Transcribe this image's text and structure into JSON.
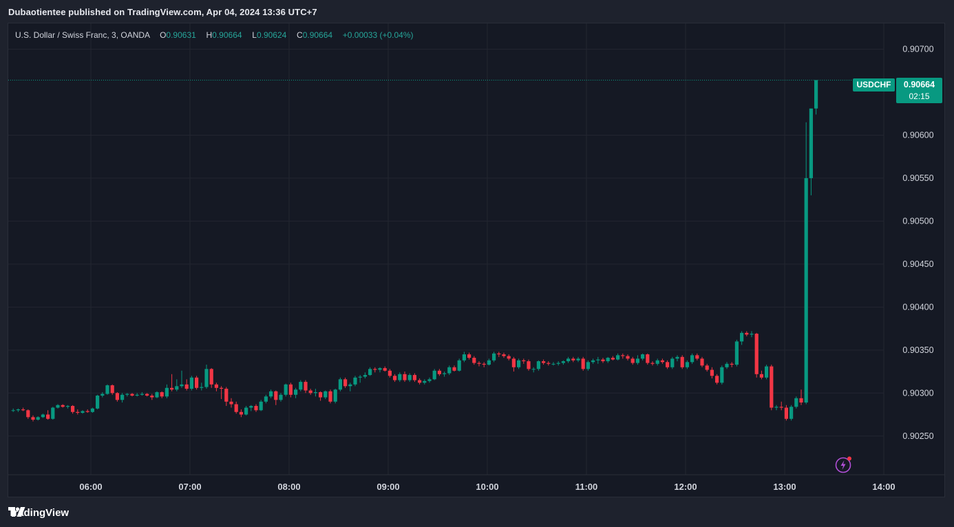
{
  "header": {
    "publisher": "Dubaotientee published on TradingView.com, Apr 04, 2024 13:36 UTC+7"
  },
  "legend": {
    "symbol_desc": "U.S. Dollar / Swiss Franc, 3, OANDA",
    "open_label": "O",
    "open": "0.90631",
    "high_label": "H",
    "high": "0.90664",
    "low_label": "L",
    "low": "0.90624",
    "close_label": "C",
    "close": "0.90664",
    "change": "+0.00033 (+0.04%)"
  },
  "last_price": {
    "symbol": "USDCHF",
    "price": "0.90664",
    "countdown": "02:15"
  },
  "footer": {
    "brand": "TradingView"
  },
  "colors": {
    "up": "#089981",
    "down": "#f23645",
    "grid": "#232631",
    "background": "#151924"
  },
  "chart_data": {
    "type": "candlestick",
    "y_ticks": [
      "0.90700",
      "0.90600",
      "0.90550",
      "0.90500",
      "0.90450",
      "0.90400",
      "0.90350",
      "0.90300",
      "0.90250"
    ],
    "x_ticks": [
      "06:00",
      "07:00",
      "08:00",
      "09:00",
      "10:00",
      "11:00",
      "12:00",
      "13:00",
      "14:00"
    ],
    "ylim": [
      0.90205,
      0.9073
    ],
    "x_start": "05:13",
    "interval_minutes": 3,
    "grid": true,
    "last_price_line": 0.90664,
    "ohlc": [
      [
        0.9028,
        0.90282,
        0.90278,
        0.9028
      ],
      [
        0.9028,
        0.90282,
        0.90278,
        0.90281
      ],
      [
        0.90281,
        0.90283,
        0.90279,
        0.9028
      ],
      [
        0.9028,
        0.90281,
        0.9027,
        0.90272
      ],
      [
        0.90272,
        0.90274,
        0.90267,
        0.90269
      ],
      [
        0.90269,
        0.90273,
        0.90268,
        0.90272
      ],
      [
        0.90272,
        0.90276,
        0.90271,
        0.90275
      ],
      [
        0.90275,
        0.9028,
        0.90269,
        0.9027
      ],
      [
        0.9027,
        0.90284,
        0.90269,
        0.90283
      ],
      [
        0.90283,
        0.90287,
        0.90282,
        0.90286
      ],
      [
        0.90286,
        0.90287,
        0.90283,
        0.90284
      ],
      [
        0.90284,
        0.90286,
        0.90282,
        0.90285
      ],
      [
        0.90285,
        0.90286,
        0.90276,
        0.90278
      ],
      [
        0.90278,
        0.90281,
        0.90275,
        0.90277
      ],
      [
        0.90277,
        0.9028,
        0.90276,
        0.90279
      ],
      [
        0.90279,
        0.90281,
        0.90277,
        0.90278
      ],
      [
        0.90278,
        0.90283,
        0.90277,
        0.90282
      ],
      [
        0.90282,
        0.90298,
        0.90281,
        0.90297
      ],
      [
        0.90297,
        0.90301,
        0.90295,
        0.90299
      ],
      [
        0.90299,
        0.9031,
        0.90298,
        0.90309
      ],
      [
        0.90309,
        0.9031,
        0.90298,
        0.903
      ],
      [
        0.903,
        0.90301,
        0.9029,
        0.90292
      ],
      [
        0.90292,
        0.903,
        0.90289,
        0.90298
      ],
      [
        0.90298,
        0.903,
        0.90296,
        0.90299
      ],
      [
        0.90299,
        0.903,
        0.90296,
        0.90297
      ],
      [
        0.90297,
        0.903,
        0.90296,
        0.90298
      ],
      [
        0.90298,
        0.90301,
        0.90297,
        0.90299
      ],
      [
        0.90299,
        0.903,
        0.90296,
        0.90297
      ],
      [
        0.90297,
        0.90299,
        0.90292,
        0.90295
      ],
      [
        0.90295,
        0.90302,
        0.90294,
        0.90301
      ],
      [
        0.90301,
        0.90302,
        0.90294,
        0.90296
      ],
      [
        0.90296,
        0.9031,
        0.90294,
        0.90306
      ],
      [
        0.90306,
        0.90322,
        0.90302,
        0.90304
      ],
      [
        0.90304,
        0.90316,
        0.90302,
        0.90308
      ],
      [
        0.90308,
        0.90326,
        0.90306,
        0.9031
      ],
      [
        0.9031,
        0.90316,
        0.90303,
        0.90305
      ],
      [
        0.90305,
        0.9032,
        0.90303,
        0.90318
      ],
      [
        0.90318,
        0.9032,
        0.90304,
        0.90306
      ],
      [
        0.90306,
        0.90312,
        0.90303,
        0.90307
      ],
      [
        0.90307,
        0.90333,
        0.90305,
        0.90328
      ],
      [
        0.90328,
        0.90329,
        0.90306,
        0.9031
      ],
      [
        0.9031,
        0.90312,
        0.90302,
        0.90306
      ],
      [
        0.90306,
        0.90308,
        0.90293,
        0.90305
      ],
      [
        0.90305,
        0.90307,
        0.90285,
        0.9029
      ],
      [
        0.9029,
        0.90294,
        0.90283,
        0.90287
      ],
      [
        0.90287,
        0.9029,
        0.90276,
        0.90278
      ],
      [
        0.90278,
        0.90281,
        0.90272,
        0.90275
      ],
      [
        0.90275,
        0.90285,
        0.90274,
        0.90283
      ],
      [
        0.90283,
        0.90286,
        0.90279,
        0.90285
      ],
      [
        0.90285,
        0.90287,
        0.90278,
        0.9028
      ],
      [
        0.9028,
        0.90292,
        0.90279,
        0.9029
      ],
      [
        0.9029,
        0.90298,
        0.90288,
        0.90296
      ],
      [
        0.90296,
        0.90304,
        0.90294,
        0.90302
      ],
      [
        0.90302,
        0.90303,
        0.90286,
        0.90292
      ],
      [
        0.90292,
        0.903,
        0.9029,
        0.90298
      ],
      [
        0.90298,
        0.90311,
        0.90296,
        0.9031
      ],
      [
        0.9031,
        0.90312,
        0.90295,
        0.90298
      ],
      [
        0.90298,
        0.90306,
        0.90294,
        0.90304
      ],
      [
        0.90304,
        0.90315,
        0.90302,
        0.90313
      ],
      [
        0.90313,
        0.90315,
        0.903,
        0.90303
      ],
      [
        0.90303,
        0.90305,
        0.90298,
        0.903
      ],
      [
        0.903,
        0.90305,
        0.90296,
        0.90301
      ],
      [
        0.90301,
        0.90302,
        0.90291,
        0.90295
      ],
      [
        0.90295,
        0.90303,
        0.90293,
        0.90302
      ],
      [
        0.90302,
        0.90304,
        0.90288,
        0.9029
      ],
      [
        0.9029,
        0.90305,
        0.90288,
        0.90304
      ],
      [
        0.90304,
        0.90318,
        0.90302,
        0.90316
      ],
      [
        0.90316,
        0.90318,
        0.90306,
        0.90308
      ],
      [
        0.90308,
        0.90312,
        0.90302,
        0.9031
      ],
      [
        0.9031,
        0.9032,
        0.90308,
        0.90318
      ],
      [
        0.90318,
        0.90321,
        0.90312,
        0.90319
      ],
      [
        0.90319,
        0.90324,
        0.90317,
        0.90321
      ],
      [
        0.90321,
        0.9033,
        0.9032,
        0.90328
      ],
      [
        0.90328,
        0.9033,
        0.90324,
        0.90327
      ],
      [
        0.90327,
        0.9033,
        0.90324,
        0.90329
      ],
      [
        0.90329,
        0.90331,
        0.90325,
        0.90326
      ],
      [
        0.90326,
        0.90328,
        0.90318,
        0.9032
      ],
      [
        0.9032,
        0.90322,
        0.90313,
        0.90315
      ],
      [
        0.90315,
        0.90324,
        0.90313,
        0.90322
      ],
      [
        0.90322,
        0.90325,
        0.90313,
        0.90315
      ],
      [
        0.90315,
        0.90323,
        0.90313,
        0.90321
      ],
      [
        0.90321,
        0.90323,
        0.90313,
        0.90315
      ],
      [
        0.90315,
        0.90317,
        0.9031,
        0.90312
      ],
      [
        0.90312,
        0.90316,
        0.9031,
        0.90314
      ],
      [
        0.90314,
        0.90318,
        0.90312,
        0.90316
      ],
      [
        0.90316,
        0.90328,
        0.90315,
        0.90326
      ],
      [
        0.90326,
        0.90328,
        0.9032,
        0.90322
      ],
      [
        0.90322,
        0.90325,
        0.90319,
        0.90323
      ],
      [
        0.90323,
        0.90332,
        0.90321,
        0.9033
      ],
      [
        0.9033,
        0.90332,
        0.90325,
        0.90326
      ],
      [
        0.90326,
        0.9034,
        0.90325,
        0.90338
      ],
      [
        0.90338,
        0.90348,
        0.90336,
        0.90345
      ],
      [
        0.90345,
        0.90347,
        0.90339,
        0.90341
      ],
      [
        0.90341,
        0.90343,
        0.90333,
        0.90335
      ],
      [
        0.90335,
        0.90337,
        0.90331,
        0.90334
      ],
      [
        0.90334,
        0.90336,
        0.9033,
        0.90333
      ],
      [
        0.90333,
        0.9034,
        0.90332,
        0.90338
      ],
      [
        0.90338,
        0.90348,
        0.90336,
        0.90346
      ],
      [
        0.90346,
        0.90348,
        0.90342,
        0.90345
      ],
      [
        0.90345,
        0.90347,
        0.90341,
        0.90343
      ],
      [
        0.90343,
        0.90345,
        0.90338,
        0.9034
      ],
      [
        0.9034,
        0.90342,
        0.90325,
        0.9033
      ],
      [
        0.9033,
        0.9034,
        0.90328,
        0.90338
      ],
      [
        0.90338,
        0.9034,
        0.90334,
        0.90337
      ],
      [
        0.90337,
        0.90339,
        0.90326,
        0.90328
      ],
      [
        0.90328,
        0.9033,
        0.90324,
        0.90328
      ],
      [
        0.90328,
        0.90338,
        0.90326,
        0.90337
      ],
      [
        0.90337,
        0.90339,
        0.90333,
        0.90335
      ],
      [
        0.90335,
        0.90337,
        0.90332,
        0.90334
      ],
      [
        0.90334,
        0.90336,
        0.90332,
        0.90334
      ],
      [
        0.90334,
        0.90337,
        0.90332,
        0.90335
      ],
      [
        0.90335,
        0.90338,
        0.90333,
        0.90337
      ],
      [
        0.90337,
        0.90342,
        0.90335,
        0.9034
      ],
      [
        0.9034,
        0.90342,
        0.90336,
        0.90338
      ],
      [
        0.90338,
        0.90342,
        0.90336,
        0.9034
      ],
      [
        0.9034,
        0.90342,
        0.90326,
        0.90328
      ],
      [
        0.90328,
        0.90338,
        0.90326,
        0.90336
      ],
      [
        0.90336,
        0.9034,
        0.90334,
        0.90338
      ],
      [
        0.90338,
        0.90342,
        0.90334,
        0.90339
      ],
      [
        0.90339,
        0.90341,
        0.90335,
        0.90337
      ],
      [
        0.90337,
        0.90342,
        0.90335,
        0.90341
      ],
      [
        0.90341,
        0.90343,
        0.90338,
        0.90339
      ],
      [
        0.90339,
        0.90346,
        0.90338,
        0.90344
      ],
      [
        0.90344,
        0.90346,
        0.9034,
        0.90343
      ],
      [
        0.90343,
        0.90345,
        0.90338,
        0.9034
      ],
      [
        0.9034,
        0.90342,
        0.90333,
        0.90335
      ],
      [
        0.90335,
        0.90344,
        0.90333,
        0.9034
      ],
      [
        0.9034,
        0.90346,
        0.90338,
        0.90345
      ],
      [
        0.90345,
        0.90346,
        0.90333,
        0.90335
      ],
      [
        0.90335,
        0.90337,
        0.90332,
        0.90334
      ],
      [
        0.90334,
        0.9034,
        0.90332,
        0.90338
      ],
      [
        0.90338,
        0.9034,
        0.90334,
        0.90336
      ],
      [
        0.90336,
        0.90338,
        0.90328,
        0.9033
      ],
      [
        0.9033,
        0.90342,
        0.90328,
        0.9034
      ],
      [
        0.9034,
        0.90344,
        0.90337,
        0.90342
      ],
      [
        0.90342,
        0.90344,
        0.90328,
        0.9033
      ],
      [
        0.9033,
        0.90338,
        0.90328,
        0.90336
      ],
      [
        0.90336,
        0.90346,
        0.90334,
        0.90344
      ],
      [
        0.90344,
        0.90346,
        0.90338,
        0.9034
      ],
      [
        0.9034,
        0.90342,
        0.9033,
        0.90332
      ],
      [
        0.90332,
        0.90334,
        0.90325,
        0.90327
      ],
      [
        0.90327,
        0.9033,
        0.90317,
        0.9032
      ],
      [
        0.9032,
        0.90322,
        0.9031,
        0.90312
      ],
      [
        0.90312,
        0.90332,
        0.9031,
        0.9033
      ],
      [
        0.9033,
        0.90336,
        0.90328,
        0.90334
      ],
      [
        0.90334,
        0.90336,
        0.9033,
        0.90333
      ],
      [
        0.90333,
        0.90362,
        0.90331,
        0.9036
      ],
      [
        0.9036,
        0.90372,
        0.90356,
        0.9037
      ],
      [
        0.9037,
        0.90372,
        0.90366,
        0.90368
      ],
      [
        0.90368,
        0.90372,
        0.90365,
        0.90369
      ],
      [
        0.90369,
        0.9037,
        0.90318,
        0.90322
      ],
      [
        0.90322,
        0.90326,
        0.90316,
        0.90318
      ],
      [
        0.90318,
        0.90333,
        0.90316,
        0.90331
      ],
      [
        0.90331,
        0.90333,
        0.9028,
        0.90283
      ],
      [
        0.90283,
        0.90286,
        0.9028,
        0.90284
      ],
      [
        0.90284,
        0.9029,
        0.9028,
        0.90283
      ],
      [
        0.90283,
        0.90286,
        0.90268,
        0.9027
      ],
      [
        0.9027,
        0.90286,
        0.90268,
        0.90284
      ],
      [
        0.90284,
        0.90296,
        0.90282,
        0.90294
      ],
      [
        0.90294,
        0.90304,
        0.90286,
        0.90289
      ],
      [
        0.90289,
        0.90615,
        0.90287,
        0.9055
      ],
      [
        0.9055,
        0.9063,
        0.9053,
        0.90631
      ],
      [
        0.90631,
        0.90664,
        0.90624,
        0.90664
      ]
    ]
  }
}
